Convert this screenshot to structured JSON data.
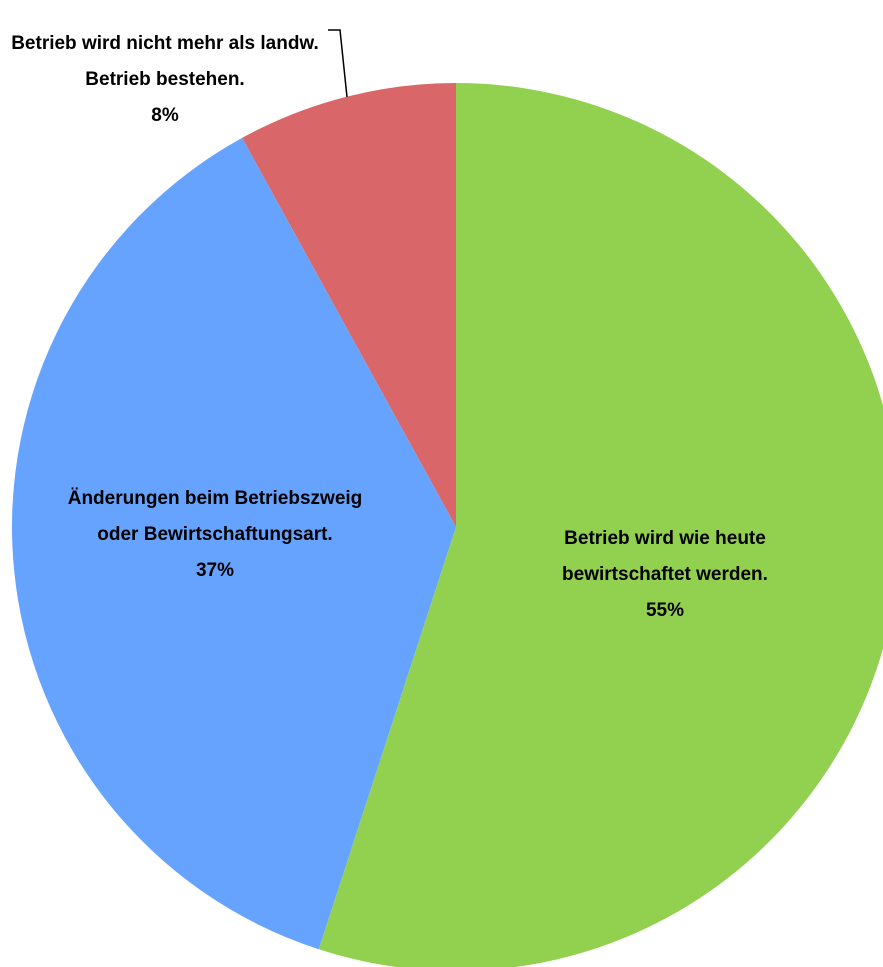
{
  "chart_data": {
    "type": "pie",
    "categories": [
      "Betrieb wird wie heute bewirtschaftet werden.",
      "Änderungen beim Betriebszweig oder Bewirtschaftungsart.",
      "Betrieb wird nicht mehr als landw. Betrieb bestehen."
    ],
    "values": [
      55,
      37,
      8
    ],
    "value_labels": [
      "55%",
      "37%",
      "8%"
    ],
    "colors": [
      "#92d050",
      "#66a3ff",
      "#d9676a"
    ]
  }
}
